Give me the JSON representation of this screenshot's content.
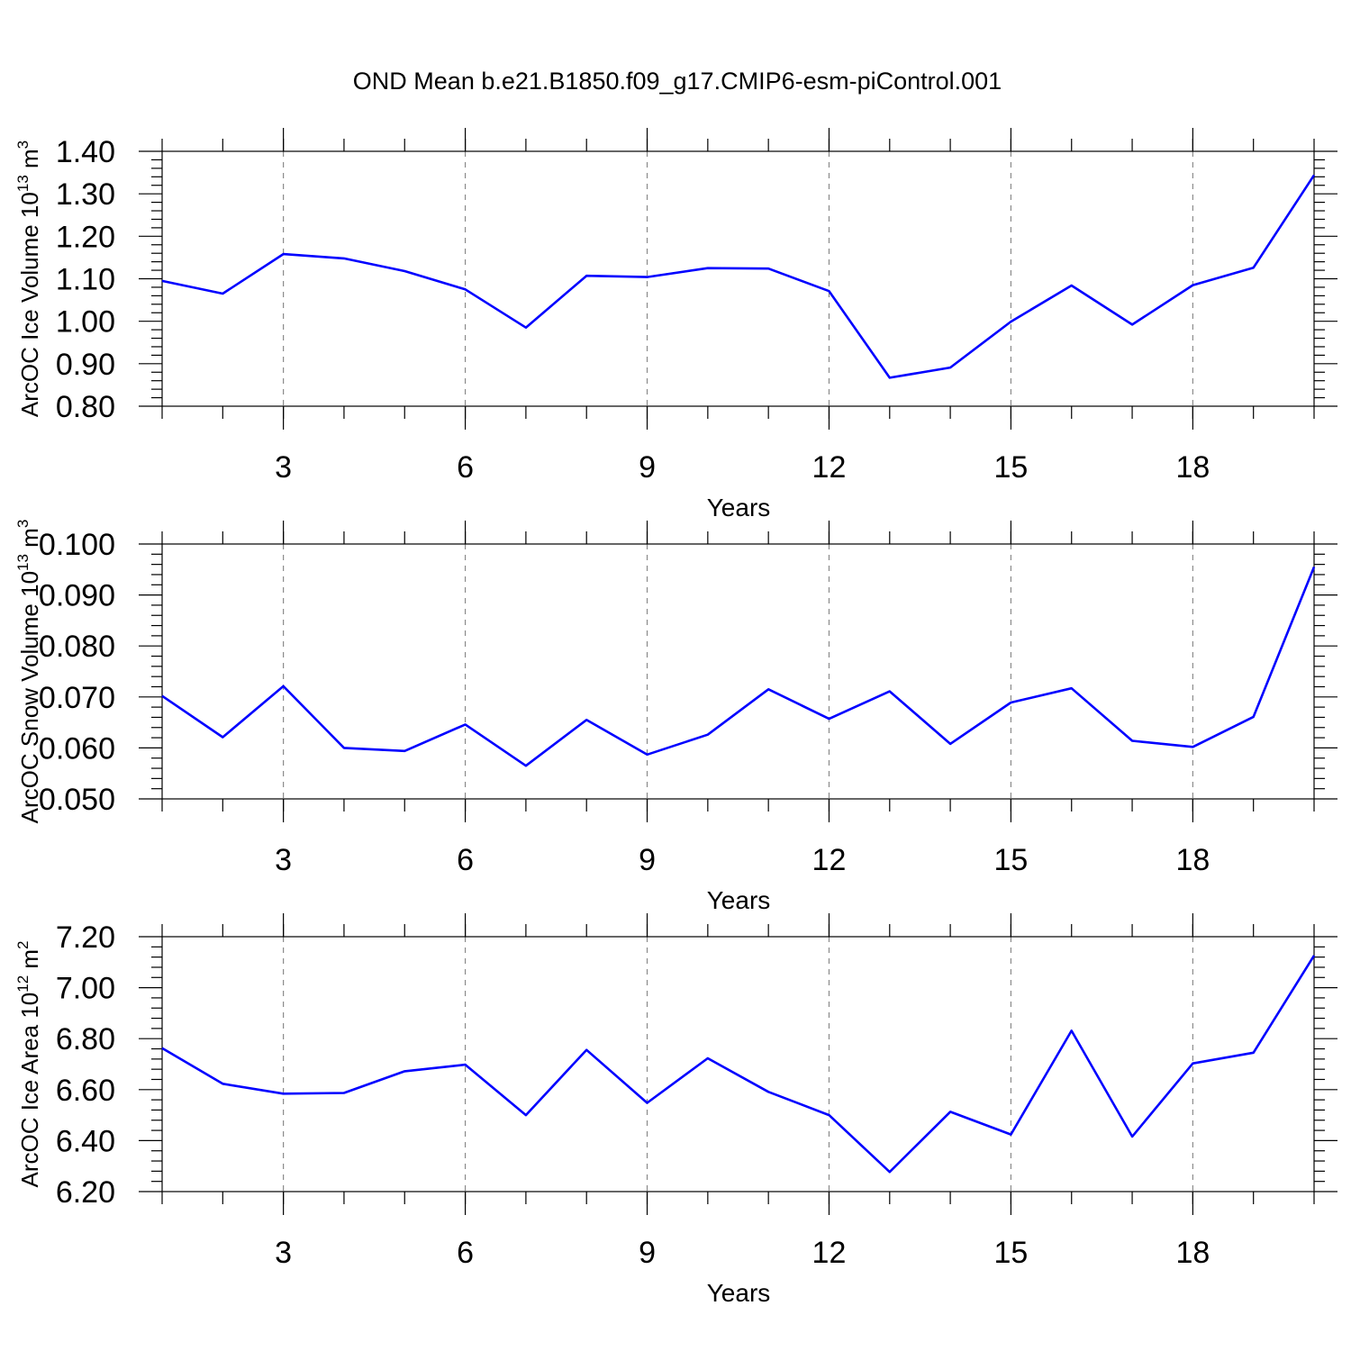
{
  "title": "OND Mean b.e21.B1850.f09_g17.CMIP6-esm-piControl.001",
  "colors": {
    "line": "#0000ff",
    "grid": "#8a8a8a"
  },
  "chart_data": [
    {
      "type": "line",
      "ylabel_prefix": "ArcOC Ice Volume 10",
      "ylabel_exp": "13",
      "ylabel_unit": "m",
      "ylabel_unit_exp": "3",
      "xlabel": "Years",
      "xlim": [
        1,
        20
      ],
      "ylim": [
        0.8,
        1.4
      ],
      "x_ticks": [
        "3",
        "6",
        "9",
        "12",
        "15",
        "18"
      ],
      "y_ticks": [
        "0.80",
        "0.90",
        "1.00",
        "1.10",
        "1.20",
        "1.30",
        "1.40"
      ],
      "grid": "vertical dashed at major x ticks",
      "x": [
        1,
        2,
        3,
        4,
        5,
        6,
        7,
        8,
        9,
        10,
        11,
        12,
        13,
        14,
        15,
        16,
        17,
        18,
        19,
        20
      ],
      "values": [
        1.095,
        1.065,
        1.158,
        1.148,
        1.118,
        1.075,
        0.985,
        1.107,
        1.104,
        1.125,
        1.124,
        1.071,
        0.867,
        0.891,
        0.999,
        1.084,
        0.992,
        1.085,
        1.126,
        1.344
      ]
    },
    {
      "type": "line",
      "ylabel_prefix": "ArcOC Snow Volume 10",
      "ylabel_exp": "13",
      "ylabel_unit": "m",
      "ylabel_unit_exp": "3",
      "xlabel": "Years",
      "xlim": [
        1,
        20
      ],
      "ylim": [
        0.05,
        0.1
      ],
      "x_ticks": [
        "3",
        "6",
        "9",
        "12",
        "15",
        "18"
      ],
      "y_ticks": [
        "0.050",
        "0.060",
        "0.070",
        "0.080",
        "0.090",
        "0.100"
      ],
      "grid": "vertical dashed at major x ticks",
      "x": [
        1,
        2,
        3,
        4,
        5,
        6,
        7,
        8,
        9,
        10,
        11,
        12,
        13,
        14,
        15,
        16,
        17,
        18,
        19,
        20
      ],
      "values": [
        0.0702,
        0.0621,
        0.0721,
        0.06,
        0.0594,
        0.0646,
        0.0565,
        0.0655,
        0.0587,
        0.0626,
        0.0715,
        0.0657,
        0.0711,
        0.0608,
        0.0689,
        0.0717,
        0.0614,
        0.0602,
        0.0661,
        0.0955
      ]
    },
    {
      "type": "line",
      "ylabel_prefix": "ArcOC Ice Area 10",
      "ylabel_exp": "12",
      "ylabel_unit": "m",
      "ylabel_unit_exp": "2",
      "xlabel": "Years",
      "xlim": [
        1,
        20
      ],
      "ylim": [
        6.2,
        7.2
      ],
      "x_ticks": [
        "3",
        "6",
        "9",
        "12",
        "15",
        "18"
      ],
      "y_ticks": [
        "6.20",
        "6.40",
        "6.60",
        "6.80",
        "7.00",
        "7.20"
      ],
      "grid": "vertical dashed at major x ticks",
      "x": [
        1,
        2,
        3,
        4,
        5,
        6,
        7,
        8,
        9,
        10,
        11,
        12,
        13,
        14,
        15,
        16,
        17,
        18,
        19,
        20
      ],
      "values": [
        6.763,
        6.623,
        6.584,
        6.587,
        6.672,
        6.698,
        6.5,
        6.756,
        6.548,
        6.723,
        6.591,
        6.5,
        6.277,
        6.513,
        6.424,
        6.831,
        6.416,
        6.703,
        6.745,
        7.126
      ]
    }
  ]
}
